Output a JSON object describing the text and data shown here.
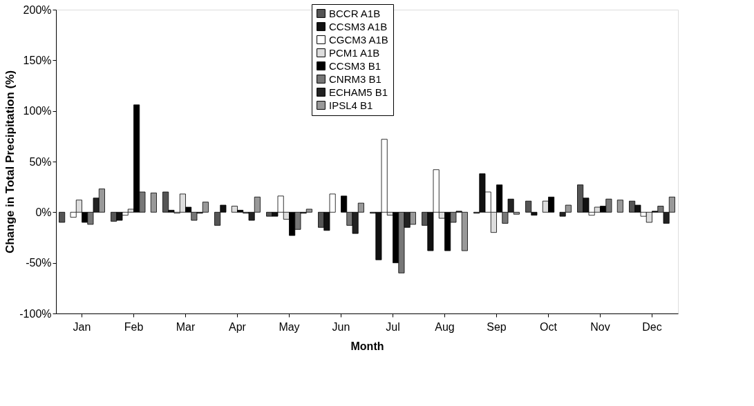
{
  "chart_data": {
    "type": "bar",
    "xlabel": "Month",
    "ylabel": "Change in Total Precipitation (%)",
    "categories": [
      "Jan",
      "Feb",
      "Mar",
      "Apr",
      "May",
      "Jun",
      "Jul",
      "Aug",
      "Sep",
      "Oct",
      "Nov",
      "Dec"
    ],
    "series": [
      {
        "name": "BCCR A1B",
        "color": "#555555",
        "values": [
          -10,
          -9,
          20,
          -13,
          -4,
          -15,
          -1,
          -13,
          -1,
          11,
          27,
          11
        ]
      },
      {
        "name": "CCSM3 A1B",
        "color": "#111111",
        "values": [
          null,
          -8,
          2,
          7,
          -4,
          -18,
          -47,
          -38,
          38,
          -3,
          14,
          7
        ]
      },
      {
        "name": "CGCM3 A1B",
        "color": "#ffffff",
        "values": [
          -5,
          -3,
          -1,
          null,
          16,
          18,
          72,
          42,
          20,
          null,
          -3,
          -4
        ]
      },
      {
        "name": "PCM1 A1B",
        "color": "#dddddd",
        "values": [
          12,
          3,
          18,
          6,
          -7,
          null,
          -3,
          -6,
          -20,
          11,
          5,
          -10
        ]
      },
      {
        "name": "CCSM3 B1",
        "color": "#000000",
        "values": [
          -10,
          106,
          5,
          2,
          -23,
          16,
          -50,
          -38,
          27,
          15,
          6,
          1
        ]
      },
      {
        "name": "CNRM3 B1",
        "color": "#777777",
        "values": [
          -12,
          20,
          -8,
          -1,
          -17,
          -13,
          -60,
          -10,
          -11,
          null,
          13,
          6
        ]
      },
      {
        "name": "ECHAM5 B1",
        "color": "#222222",
        "values": [
          14,
          null,
          -1,
          -8,
          -1,
          -21,
          -15,
          1,
          13,
          -4,
          null,
          -11
        ]
      },
      {
        "name": "IPSL4 B1",
        "color": "#999999",
        "values": [
          23,
          19,
          10,
          15,
          3,
          9,
          -12,
          -38,
          -2,
          7,
          12,
          15
        ]
      }
    ],
    "ylim": [
      -100,
      200
    ],
    "yticks": [
      {
        "value": -100,
        "label": "-100%"
      },
      {
        "value": -50,
        "label": "-50%"
      },
      {
        "value": 0,
        "label": "0%"
      },
      {
        "value": 50,
        "label": "50%"
      },
      {
        "value": 100,
        "label": "100%"
      },
      {
        "value": 150,
        "label": "150%"
      },
      {
        "value": 200,
        "label": "200%"
      }
    ],
    "grid": false,
    "legend": "top"
  }
}
